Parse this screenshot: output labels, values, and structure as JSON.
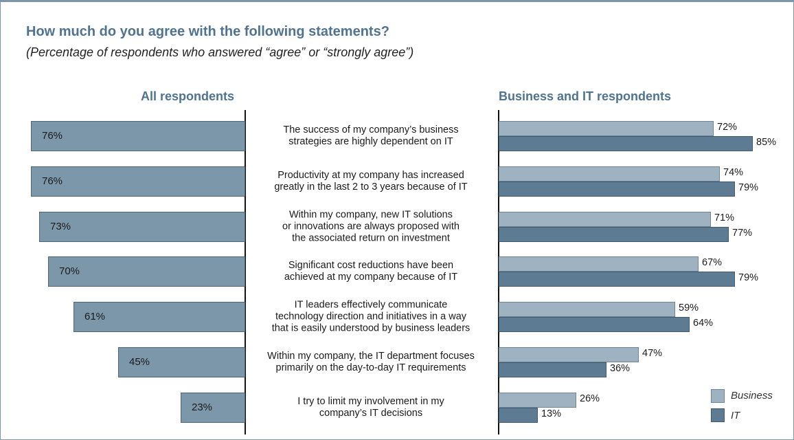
{
  "chart_data": {
    "type": "bar",
    "title": "How much do you agree with the following statements?",
    "subtitle": "(Percentage of respondents who answered “agree” or “strongly agree”)",
    "panels": {
      "left_heading": "All respondents",
      "right_heading": "Business and IT respondents"
    },
    "categories": [
      [
        "The success of my company’s business",
        "strategies are highly dependent on IT"
      ],
      [
        "Productivity at my company has increased",
        "greatly in the last 2 to 3 years because of IT"
      ],
      [
        "Within my company, new IT solutions",
        "or innovations are always proposed with",
        "the associated return on investment"
      ],
      [
        "Significant cost reductions have been",
        "achieved at my company because of IT"
      ],
      [
        "IT leaders effectively communicate",
        "technology direction and initiatives in a way",
        "that is easily understood by business leaders"
      ],
      [
        "Within my company, the IT department focuses",
        "primarily on the day-to-day IT requirements"
      ],
      [
        "I try to limit my involvement in my",
        "company’s IT decisions"
      ]
    ],
    "all_respondents": [
      76,
      76,
      73,
      70,
      61,
      45,
      23
    ],
    "series": [
      {
        "name": "Business",
        "values": [
          72,
          74,
          71,
          67,
          59,
          47,
          26
        ]
      },
      {
        "name": "IT",
        "values": [
          85,
          79,
          77,
          79,
          64,
          36,
          13
        ]
      }
    ],
    "unit": "%",
    "legend": "bottom-right",
    "colors": {
      "all": "#7d97aa",
      "business": "#9fb2c2",
      "it": "#5d7b93",
      "heading": "#4f7391"
    }
  }
}
